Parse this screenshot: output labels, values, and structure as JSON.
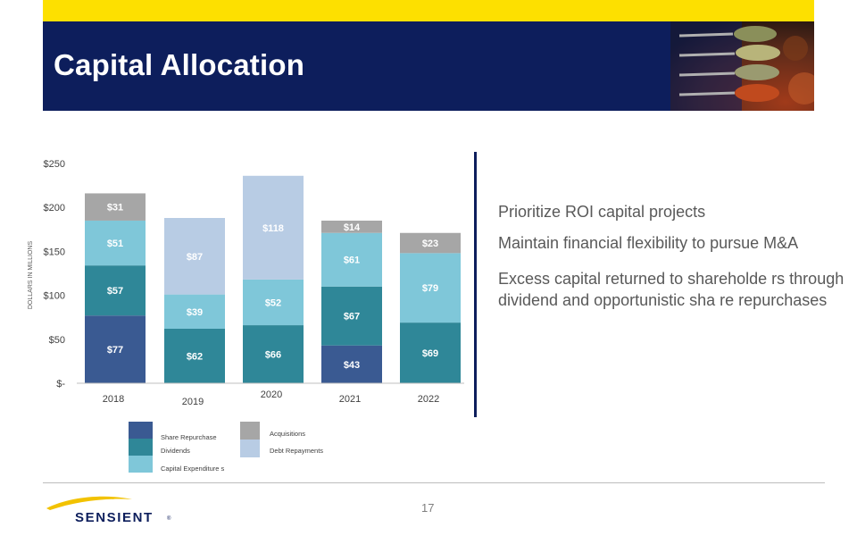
{
  "header": {
    "title": "Capital Allocation"
  },
  "colors": {
    "navy": "#0d1e5c",
    "yellow": "#fde000",
    "share_repurchase": "#3a5a92",
    "dividends": "#2f8798",
    "capital_expenditures": "#7fc7d9",
    "acquisitions": "#a6a6a6",
    "debt_repayments": "#b8cce4"
  },
  "chart_data": {
    "type": "bar",
    "stacked": true,
    "categories": [
      "2018",
      "2019",
      "2020",
      "2021",
      "2022"
    ],
    "ylabel": "DOLLARS IN MILLIONS",
    "ylim": [
      0,
      250
    ],
    "yticks": [
      {
        "value": 0,
        "label": "$-"
      },
      {
        "value": 50,
        "label": "$50"
      },
      {
        "value": 100,
        "label": "$100"
      },
      {
        "value": 150,
        "label": "$150"
      },
      {
        "value": 200,
        "label": "$200"
      },
      {
        "value": 250,
        "label": "$250"
      }
    ],
    "series": [
      {
        "name": "Share Repurchase",
        "key": "share_repurchase",
        "values": [
          77,
          0,
          0,
          43,
          0
        ],
        "labels": [
          "$77",
          "",
          "",
          "$43",
          ""
        ]
      },
      {
        "name": "Dividends",
        "key": "dividends",
        "values": [
          57,
          62,
          66,
          67,
          69
        ],
        "labels": [
          "$57",
          "$62",
          "$66",
          "$67",
          "$69"
        ]
      },
      {
        "name": "Capital Expenditure s",
        "key": "capital_expenditures",
        "values": [
          51,
          39,
          52,
          61,
          79
        ],
        "labels": [
          "$51",
          "$39",
          "$52",
          "$61",
          "$79"
        ]
      },
      {
        "name": "Debt Repayments",
        "key": "debt_repayments",
        "values": [
          0,
          87,
          118,
          0,
          0
        ],
        "labels": [
          "",
          "$87",
          "$118",
          "",
          ""
        ]
      },
      {
        "name": "Acquisitions",
        "key": "acquisitions",
        "values": [
          31,
          0,
          0,
          14,
          23
        ],
        "labels": [
          "$31",
          "",
          "",
          "$14",
          "$23"
        ]
      }
    ],
    "legend": {
      "position": "bottom",
      "left_column": [
        "Share Repurchase",
        "Dividends",
        "Capital Expenditure s"
      ],
      "right_column": [
        "Acquisitions",
        "Debt Repayments"
      ]
    }
  },
  "bullets": [
    "Prioritize ROI capital projects",
    "Maintain financial flexibility to pursue M&A",
    "Excess capital returned to shareholde rs through dividend and opportunistic sha re repurchases"
  ],
  "footer": {
    "page_number": "17",
    "brand": "SENSIENT",
    "registered": "®"
  }
}
